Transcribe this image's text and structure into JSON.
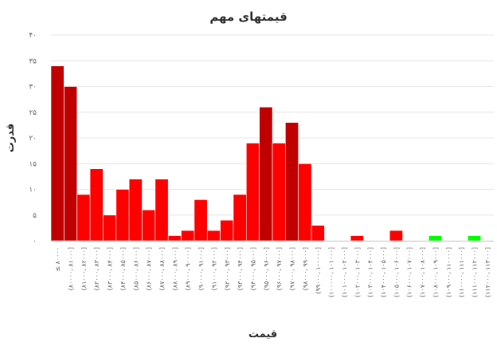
{
  "chart_data": {
    "type": "bar",
    "title": "قیمتهای مهم",
    "xlabel": "قیمت",
    "ylabel": "قدرت",
    "ylim": [
      0,
      40
    ],
    "yticks": [
      "۰",
      "۵",
      "۱۰",
      "۱۵",
      "۲۰",
      "۲۵",
      "۳۰",
      "۳۵",
      "۴۰"
    ],
    "ytick_values": [
      0,
      5,
      10,
      15,
      20,
      25,
      30,
      35,
      40
    ],
    "grid": true,
    "legend": "none",
    "colors": {
      "dark": "#c00000",
      "normal": "#ff0000",
      "green": "#00ff00"
    },
    "categories": [
      "≤ ۸۰۰۰۰",
      "(۸۰۰۰۰، ۸۱۰۰۰]",
      "(۸۱۰۰۰، ۸۲۰۰۰]",
      "(۸۲۰۰۰، ۸۳۰۰۰]",
      "(۸۳۰۰۰، ۸۴۰۰۰]",
      "(۸۴۰۰۰، ۸۵۰۰۰]",
      "(۸۵۰۰۰، ۸۶۰۰۰]",
      "(۸۶۰۰۰، ۸۷۰۰۰]",
      "(۸۷۰۰۰، ۸۸۰۰۰]",
      "(۸۸۰۰۰، ۸۹۰۰۰]",
      "(۸۹۰۰۰، ۹۰۰۰۰]",
      "(۹۰۰۰۰، ۹۱۰۰۰]",
      "(۹۱۰۰۰، ۹۲۰۰۰]",
      "(۹۲۰۰۰، ۹۳۰۰۰]",
      "(۹۳۰۰۰، ۹۴۰۰۰]",
      "(۹۴۰۰۰، ۹۵۰۰۰]",
      "(۹۵۰۰۰، ۹۶۰۰۰]",
      "(۹۶۰۰۰، ۹۷۰۰۰]",
      "(۹۷۰۰۰، ۹۸۰۰۰]",
      "(۹۸۰۰۰، ۹۹۰۰۰]",
      "(۹۹۰۰۰، ۱۰۰۰۰۰]",
      "(۱۰۰۰۰۰، ۱۰۱۰۰۰]",
      "(۱۰۱۰۰۰، ۱۰۲۰۰۰]",
      "(۱۰۲۰۰۰، ۱۰۳۰۰۰]",
      "(۱۰۳۰۰۰، ۱۰۴۰۰۰]",
      "(۱۰۴۰۰۰، ۱۰۵۰۰۰]",
      "(۱۰۵۰۰۰، ۱۰۶۰۰۰]",
      "(۱۰۶۰۰۰، ۱۰۷۰۰۰]",
      "(۱۰۷۰۰۰، ۱۰۸۰۰۰]",
      "(۱۰۸۰۰۰، ۱۰۹۰۰۰]",
      "(۱۰۹۰۰۰، ۱۱۰۰۰۰]",
      "(۱۱۰۰۰۰، ۱۱۱۰۰۰]",
      "(۱۱۱۰۰۰، ۱۱۲۰۰۰]",
      "(۱۱۲۰۰۰، ۱۱۳۰۰۰]"
    ],
    "values": [
      34,
      30,
      9,
      14,
      5,
      10,
      12,
      6,
      12,
      1,
      2,
      8,
      2,
      4,
      9,
      19,
      26,
      19,
      23,
      15,
      3,
      0,
      0,
      1,
      0,
      0,
      2,
      0,
      0,
      1,
      0,
      0,
      1,
      0
    ],
    "bar_colors": [
      "dark",
      "dark",
      "normal",
      "normal",
      "normal",
      "normal",
      "normal",
      "normal",
      "normal",
      "normal",
      "normal",
      "normal",
      "normal",
      "normal",
      "normal",
      "normal",
      "dark",
      "normal",
      "dark",
      "normal",
      "normal",
      "normal",
      "normal",
      "normal",
      "normal",
      "normal",
      "normal",
      "normal",
      "normal",
      "green",
      "normal",
      "normal",
      "green",
      "normal"
    ]
  }
}
